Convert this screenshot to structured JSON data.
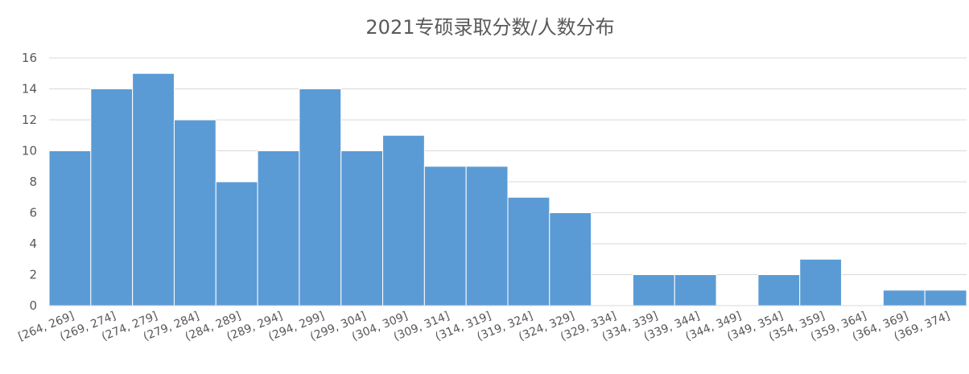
{
  "chart_data": {
    "type": "bar",
    "title": "2021专硕录取分数/人数分布",
    "xlabel": "",
    "ylabel": "",
    "categories": [
      "[264, 269]",
      "(269, 274]",
      "(274, 279]",
      "(279, 284]",
      "(284, 289]",
      "(289, 294]",
      "(294, 299]",
      "(299, 304]",
      "(304, 309]",
      "(309, 314]",
      "(314, 319]",
      "(319, 324]",
      "(324, 329]",
      "(329, 334]",
      "(334, 339]",
      "(339, 344]",
      "(344, 349]",
      "(349, 354]",
      "(354, 359]",
      "(359, 364]",
      "(364, 369]",
      "(369, 374]"
    ],
    "values": [
      10,
      14,
      15,
      12,
      8,
      10,
      14,
      10,
      11,
      9,
      9,
      7,
      6,
      0,
      2,
      2,
      0,
      2,
      3,
      0,
      1,
      1
    ],
    "ylim": [
      0,
      16
    ],
    "yticks": [
      "0",
      "2",
      "4",
      "6",
      "8",
      "10",
      "12",
      "14",
      "16"
    ],
    "grid": true,
    "legend": "none",
    "colors": {
      "bar": "#5B9BD5",
      "bar_edge": "#FFFFFF",
      "grid": "#D9D9D9",
      "text": "#595959"
    }
  }
}
